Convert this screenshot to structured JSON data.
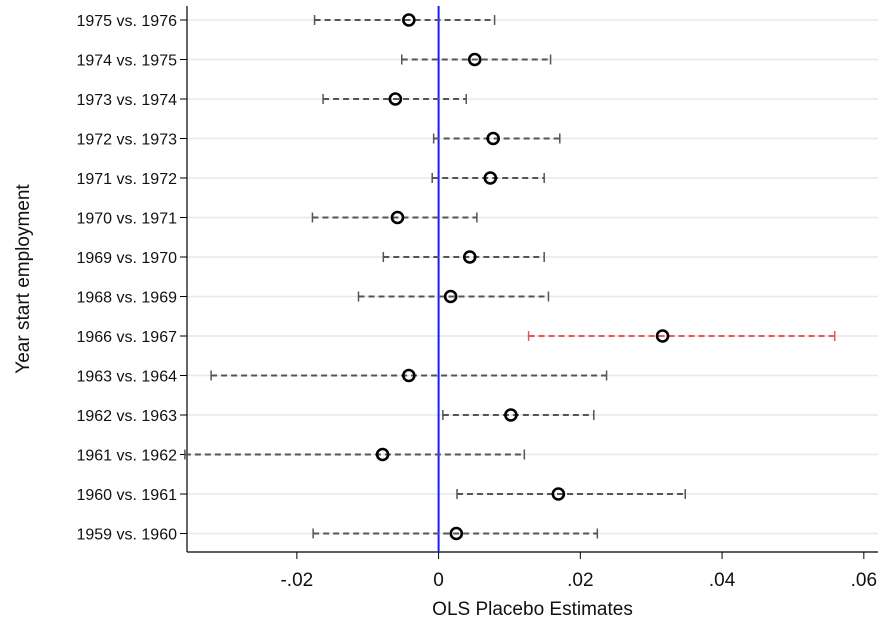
{
  "chart_data": {
    "type": "forest",
    "title": "",
    "xlabel": "OLS Placebo Estimates",
    "ylabel": "Year start employment",
    "xlim": [
      -0.0355,
      0.062
    ],
    "xticks": [
      -0.02,
      0,
      0.02,
      0.04,
      0.06
    ],
    "xtick_labels": [
      "-.02",
      "0",
      ".02",
      ".04",
      ".06"
    ],
    "reference_line": 0,
    "grid": "horizontal",
    "colors": {
      "default_ci": "#555555",
      "highlight_ci": "#e8585a",
      "reference_line": "#1a1aff",
      "grid": "#e3ebee",
      "marker": "#000000"
    },
    "rows": [
      {
        "label": "1975 vs. 1976",
        "estimate": -0.0042,
        "ci_low": -0.0175,
        "ci_high": 0.0079,
        "highlight": false
      },
      {
        "label": "1974 vs. 1975",
        "estimate": 0.0051,
        "ci_low": -0.0052,
        "ci_high": 0.0158,
        "highlight": false
      },
      {
        "label": "1973 vs. 1974",
        "estimate": -0.0061,
        "ci_low": -0.0163,
        "ci_high": 0.0039,
        "highlight": false
      },
      {
        "label": "1972 vs. 1973",
        "estimate": 0.0077,
        "ci_low": -0.0007,
        "ci_high": 0.0171,
        "highlight": false
      },
      {
        "label": "1971 vs. 1972",
        "estimate": 0.0073,
        "ci_low": -0.0009,
        "ci_high": 0.0149,
        "highlight": false
      },
      {
        "label": "1970 vs. 1971",
        "estimate": -0.0058,
        "ci_low": -0.0178,
        "ci_high": 0.0054,
        "highlight": false
      },
      {
        "label": "1969 vs. 1970",
        "estimate": 0.0044,
        "ci_low": -0.0078,
        "ci_high": 0.0149,
        "highlight": false
      },
      {
        "label": "1968 vs. 1969",
        "estimate": 0.0017,
        "ci_low": -0.0113,
        "ci_high": 0.0155,
        "highlight": false
      },
      {
        "label": "1966 vs. 1967",
        "estimate": 0.0316,
        "ci_low": 0.0127,
        "ci_high": 0.0559,
        "highlight": true
      },
      {
        "label": "1963 vs. 1964",
        "estimate": -0.0042,
        "ci_low": -0.0321,
        "ci_high": 0.0237,
        "highlight": false
      },
      {
        "label": "1962 vs. 1963",
        "estimate": 0.0102,
        "ci_low": 0.0006,
        "ci_high": 0.0219,
        "highlight": false
      },
      {
        "label": "1961 vs. 1962",
        "estimate": -0.0079,
        "ci_low": -0.0358,
        "ci_high": 0.0121,
        "highlight": false
      },
      {
        "label": "1960 vs. 1961",
        "estimate": 0.0169,
        "ci_low": 0.0026,
        "ci_high": 0.0348,
        "highlight": false
      },
      {
        "label": "1959 vs. 1960",
        "estimate": 0.0025,
        "ci_low": -0.0177,
        "ci_high": 0.0224,
        "highlight": false
      }
    ]
  }
}
